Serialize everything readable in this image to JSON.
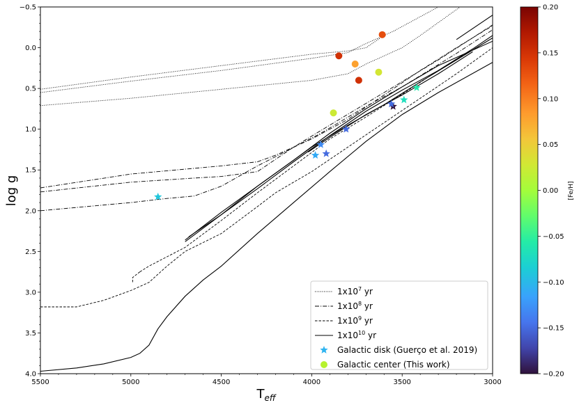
{
  "chart_data": {
    "type": "scatter",
    "xlabel": "T",
    "xlabel_sub": "eff",
    "ylabel": "log g",
    "xlim": [
      5500,
      3000
    ],
    "ylim": [
      4.0,
      -0.5
    ],
    "x_ticks": [
      "5500",
      "5000",
      "4500",
      "4000",
      "3500",
      "3000"
    ],
    "y_ticks": [
      "−0.5",
      "0.0",
      "0.5",
      "1.0",
      "1.5",
      "2.0",
      "2.5",
      "3.0",
      "3.5",
      "4.0"
    ],
    "colorbar": {
      "label": "[Fe/H]",
      "range": [
        -0.2,
        0.2
      ],
      "colormap": "turbo",
      "ticks": [
        "0.20",
        "0.15",
        "0.10",
        "0.05",
        "0.00",
        "−0.05",
        "−0.10",
        "−0.15",
        "−0.20"
      ]
    },
    "legend_position": "lower-right",
    "isochrones": [
      {
        "name": "1x10^7 yr",
        "base": "1x10",
        "exp": "7",
        "unit": " yr",
        "dash": "dotted",
        "segments": [
          [
            [
              5500,
              0.51
            ],
            [
              5000,
              0.36
            ],
            [
              4500,
              0.22
            ],
            [
              4000,
              0.08
            ],
            [
              3800,
              0.04
            ],
            [
              3700,
              0.0
            ],
            [
              3600,
              -0.15
            ]
          ],
          [
            [
              5500,
              0.55
            ],
            [
              5000,
              0.41
            ],
            [
              4500,
              0.28
            ],
            [
              4000,
              0.13
            ],
            [
              3800,
              0.06
            ],
            [
              3720,
              -0.03
            ],
            [
              3600,
              -0.15
            ],
            [
              3550,
              -0.2
            ],
            [
              3300,
              -0.5
            ]
          ],
          [
            [
              5500,
              0.71
            ],
            [
              5000,
              0.62
            ],
            [
              4500,
              0.51
            ],
            [
              4000,
              0.4
            ],
            [
              3800,
              0.32
            ],
            [
              3700,
              0.2
            ],
            [
              3600,
              0.1
            ],
            [
              3500,
              0.0
            ],
            [
              3400,
              -0.15
            ],
            [
              3180,
              -0.5
            ]
          ]
        ]
      },
      {
        "name": "1x10^8 yr",
        "base": "1x10",
        "exp": "8",
        "unit": " yr",
        "dash": "dashdot",
        "segments": [
          [
            [
              5500,
              1.72
            ],
            [
              5000,
              1.55
            ],
            [
              4500,
              1.45
            ],
            [
              4300,
              1.4
            ],
            [
              4200,
              1.32
            ],
            [
              4000,
              1.12
            ],
            [
              3800,
              0.88
            ],
            [
              3600,
              0.58
            ],
            [
              3400,
              0.28
            ],
            [
              3200,
              0.0
            ],
            [
              3000,
              -0.27
            ]
          ],
          [
            [
              5500,
              1.77
            ],
            [
              5000,
              1.65
            ],
            [
              4650,
              1.6
            ],
            [
              4500,
              1.58
            ],
            [
              4300,
              1.52
            ],
            [
              4100,
              1.22
            ],
            [
              3900,
              0.95
            ],
            [
              3600,
              0.55
            ],
            [
              3300,
              0.15
            ],
            [
              3000,
              -0.28
            ]
          ],
          [
            [
              5500,
              2.0
            ],
            [
              5000,
              1.9
            ],
            [
              4800,
              1.85
            ],
            [
              4650,
              1.82
            ],
            [
              4500,
              1.7
            ],
            [
              4300,
              1.45
            ],
            [
              4150,
              1.28
            ],
            [
              3950,
              1.05
            ],
            [
              3700,
              0.72
            ],
            [
              3500,
              0.48
            ],
            [
              3200,
              0.07
            ],
            [
              3000,
              -0.22
            ]
          ]
        ]
      },
      {
        "name": "1x10^9 yr",
        "base": "1x10",
        "exp": "9",
        "unit": " yr",
        "dash": "dashed",
        "segments": [
          [
            [
              5500,
              3.18
            ],
            [
              5300,
              3.18
            ],
            [
              5150,
              3.1
            ],
            [
              5000,
              2.98
            ],
            [
              4900,
              2.88
            ],
            [
              4800,
              2.68
            ],
            [
              4700,
              2.5
            ],
            [
              4500,
              2.28
            ],
            [
              4300,
              1.95
            ],
            [
              4200,
              1.78
            ],
            [
              4000,
              1.52
            ],
            [
              3800,
              1.22
            ],
            [
              3600,
              0.92
            ],
            [
              3400,
              0.62
            ],
            [
              3200,
              0.32
            ],
            [
              3000,
              0.0
            ]
          ],
          [
            [
              4950,
              2.75
            ],
            [
              4900,
              2.68
            ],
            [
              4700,
              2.45
            ],
            [
              4500,
              2.12
            ],
            [
              4300,
              1.78
            ],
            [
              4100,
              1.45
            ],
            [
              3900,
              1.12
            ],
            [
              3700,
              0.85
            ],
            [
              3500,
              0.57
            ],
            [
              3300,
              0.28
            ],
            [
              3000,
              -0.12
            ]
          ],
          [
            [
              4950,
              2.75
            ],
            [
              4990,
              2.82
            ],
            [
              4990,
              2.88
            ]
          ]
        ]
      },
      {
        "name": "1x10^10 yr",
        "base": "1x10",
        "exp": "10",
        "unit": " yr",
        "dash": "solid",
        "segments": [
          [
            [
              5500,
              3.97
            ],
            [
              5300,
              3.93
            ],
            [
              5150,
              3.88
            ],
            [
              5000,
              3.8
            ],
            [
              4950,
              3.75
            ],
            [
              4900,
              3.65
            ],
            [
              4850,
              3.45
            ],
            [
              4800,
              3.3
            ],
            [
              4700,
              3.05
            ],
            [
              4600,
              2.85
            ],
            [
              4500,
              2.68
            ],
            [
              4300,
              2.28
            ],
            [
              4100,
              1.9
            ],
            [
              3900,
              1.52
            ],
            [
              3700,
              1.15
            ],
            [
              3500,
              0.82
            ],
            [
              3300,
              0.55
            ],
            [
              3000,
              0.18
            ]
          ],
          [
            [
              4700,
              2.38
            ],
            [
              4500,
              2.05
            ],
            [
              4300,
              1.73
            ],
            [
              4100,
              1.4
            ],
            [
              3900,
              1.08
            ],
            [
              3700,
              0.78
            ],
            [
              3500,
              0.52
            ],
            [
              3300,
              0.28
            ],
            [
              3100,
              0.0
            ],
            [
              3000,
              -0.15
            ]
          ],
          [
            [
              4700,
              2.36
            ],
            [
              4500,
              2.02
            ],
            [
              4300,
              1.7
            ],
            [
              4100,
              1.38
            ],
            [
              3900,
              1.05
            ],
            [
              3700,
              0.75
            ],
            [
              3500,
              0.48
            ],
            [
              3300,
              0.22
            ],
            [
              3000,
              -0.08
            ]
          ],
          [
            [
              4680,
              2.32
            ],
            [
              4500,
              2.05
            ],
            [
              4300,
              1.7
            ],
            [
              4000,
              1.22
            ],
            [
              3800,
              0.95
            ],
            [
              3600,
              0.7
            ],
            [
              3400,
              0.42
            ],
            [
              3200,
              0.15
            ],
            [
              3000,
              -0.12
            ]
          ],
          [
            [
              4020,
              1.28
            ],
            [
              3900,
              1.1
            ],
            [
              3700,
              0.82
            ],
            [
              3500,
              0.58
            ],
            [
              3300,
              0.32
            ],
            [
              3110,
              0.05
            ]
          ],
          [
            [
              3200,
              -0.1
            ],
            [
              3000,
              -0.4
            ]
          ]
        ]
      }
    ],
    "series": [
      {
        "name": "Galactic disk (Guerço et al. 2019)",
        "marker": "star",
        "points": [
          {
            "teff": 4850,
            "logg": 1.83,
            "feh": -0.09
          },
          {
            "teff": 3980,
            "logg": 1.32,
            "feh": -0.11
          },
          {
            "teff": 3950,
            "logg": 1.19,
            "feh": -0.13
          },
          {
            "teff": 3920,
            "logg": 1.3,
            "feh": -0.15
          },
          {
            "teff": 3810,
            "logg": 1.0,
            "feh": -0.15
          },
          {
            "teff": 3550,
            "logg": 0.72,
            "feh": -0.2
          },
          {
            "teff": 3560,
            "logg": 0.69,
            "feh": -0.15
          },
          {
            "teff": 3490,
            "logg": 0.64,
            "feh": -0.07
          },
          {
            "teff": 3420,
            "logg": 0.49,
            "feh": -0.06
          }
        ]
      },
      {
        "name": "Galactic center (This work)",
        "marker": "circle",
        "points": [
          {
            "teff": 3610,
            "logg": -0.16,
            "feh": 0.13
          },
          {
            "teff": 3850,
            "logg": 0.1,
            "feh": 0.15
          },
          {
            "teff": 3760,
            "logg": 0.2,
            "feh": 0.08
          },
          {
            "teff": 3630,
            "logg": 0.3,
            "feh": 0.03
          },
          {
            "teff": 3740,
            "logg": 0.4,
            "feh": 0.15
          },
          {
            "teff": 3880,
            "logg": 0.8,
            "feh": 0.025
          }
        ]
      }
    ]
  }
}
